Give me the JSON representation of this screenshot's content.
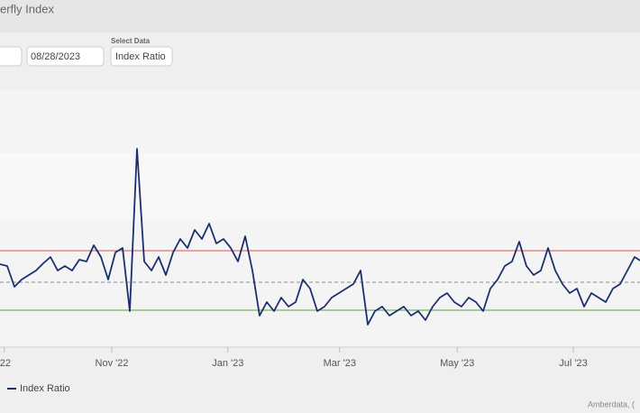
{
  "header": {
    "title": "erfly Index"
  },
  "controls": {
    "end_date": "08/28/2023",
    "select_label": "Select Data",
    "select_value": "Index Ratio"
  },
  "credits": "Amberdata, (",
  "chart_data": {
    "type": "line",
    "series": [
      {
        "name": "Index Ratio",
        "color": "#1b2f6e",
        "values": [
          43.5,
          42.5,
          31,
          35,
          37.5,
          40,
          44,
          47.5,
          40,
          42.5,
          40,
          46,
          45,
          54,
          47.5,
          35,
          50,
          52.5,
          17.5,
          107.5,
          45,
          40,
          47.5,
          37.5,
          50,
          57.5,
          52.5,
          62.5,
          57.5,
          66,
          55,
          57.5,
          52.5,
          45,
          59,
          40,
          15,
          22.5,
          17.5,
          25,
          20,
          22.5,
          35,
          30,
          17.5,
          20,
          25,
          27.5,
          30,
          32.5,
          40,
          10,
          17.5,
          20,
          15,
          17.5,
          20,
          15,
          17.5,
          12.5,
          20,
          25,
          27.5,
          22.5,
          20,
          25,
          22.5,
          17.5,
          30,
          35,
          42.5,
          45,
          56,
          42.5,
          37.5,
          40,
          52.5,
          40,
          32.5,
          27.5,
          30,
          20,
          27.5,
          25,
          22.5,
          30,
          32.5,
          40,
          47.5,
          45
        ]
      }
    ],
    "xlim": [
      0,
      89
    ],
    "xticks": [
      {
        "value": 0.6,
        "label": "'22"
      },
      {
        "value": 15.5,
        "label": "Nov '22"
      },
      {
        "value": 31.6,
        "label": "Jan '23"
      },
      {
        "value": 47.1,
        "label": "Mar '23"
      },
      {
        "value": 63.4,
        "label": "May '23"
      },
      {
        "value": 79.5,
        "label": "Jul '23"
      }
    ],
    "ylim": [
      0,
      120
    ],
    "reference_lines": [
      {
        "value": 51,
        "color": "#d9534f",
        "dashed": false
      },
      {
        "value": 33.5,
        "color": "#8a8a8a",
        "dashed": true
      },
      {
        "value": 18,
        "color": "#5aa03c",
        "dashed": false
      }
    ],
    "legend": "bottom-left"
  }
}
